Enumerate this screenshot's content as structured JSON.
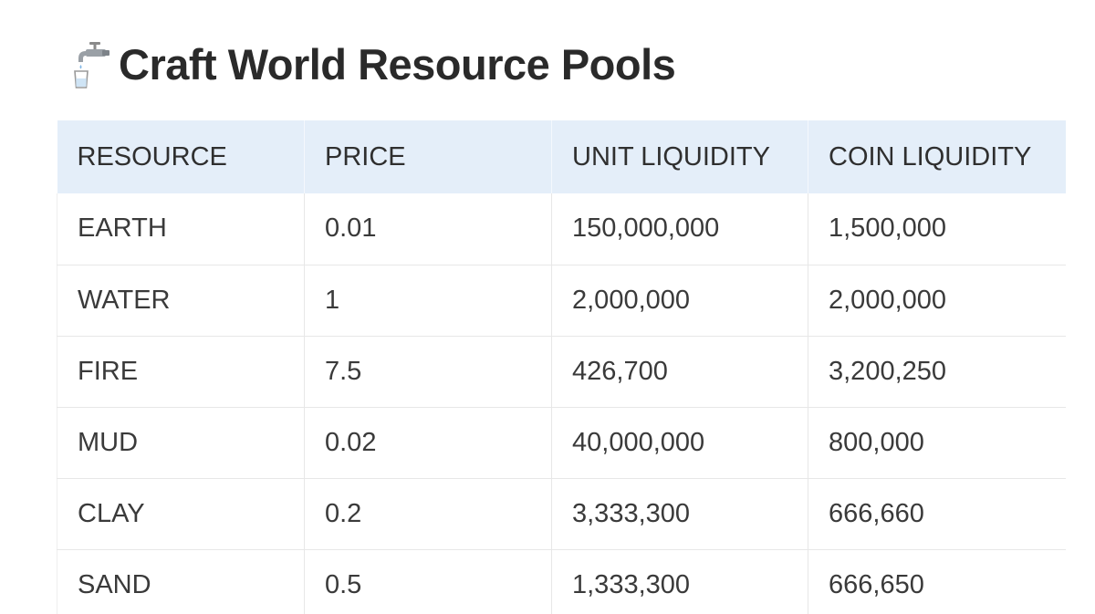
{
  "page": {
    "title": "Craft World Resource Pools",
    "title_icon": "faucet-icon"
  },
  "table": {
    "headers": [
      "RESOURCE",
      "PRICE",
      "UNIT LIQUIDITY",
      "COIN LIQUIDITY"
    ],
    "rows": [
      [
        "EARTH",
        "0.01",
        "150,000,000",
        "1,500,000"
      ],
      [
        "WATER",
        "1",
        "2,000,000",
        "2,000,000"
      ],
      [
        "FIRE",
        "7.5",
        "426,700",
        "3,200,250"
      ],
      [
        "MUD",
        "0.02",
        "40,000,000",
        "800,000"
      ],
      [
        "CLAY",
        "0.2",
        "3,333,300",
        "666,660"
      ],
      [
        "SAND",
        "0.5",
        "1,333,300",
        "666,650"
      ]
    ]
  },
  "colors": {
    "header_background": "#e4eef9",
    "border": "#e7e7e7",
    "text": "#2b2b2b"
  }
}
